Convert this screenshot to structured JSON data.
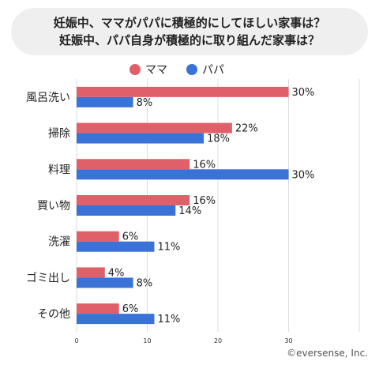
{
  "title_lines": [
    "妊娠中、ママがパパに積極的にしてほしい家事は？",
    "妊娠中、パパ自身が積極的に取り組んだ家事は？"
  ],
  "colors": {
    "mama": "#e0606a",
    "papa": "#3a72d8",
    "grid": "#dddddd",
    "title_bg": "#efefef"
  },
  "copyright": "©eversense, Inc.",
  "chart_data": {
    "type": "bar",
    "orientation": "horizontal",
    "categories": [
      "風呂洗い",
      "掃除",
      "料理",
      "買い物",
      "洗濯",
      "ゴミ出し",
      "その他"
    ],
    "series": [
      {
        "name": "ママ",
        "values": [
          30,
          22,
          16,
          16,
          6,
          4,
          6
        ],
        "labels": [
          "30%",
          "22%",
          "16%",
          "16%",
          "6%",
          "4%",
          "6%"
        ]
      },
      {
        "name": "パパ",
        "values": [
          8,
          18,
          30,
          14,
          11,
          8,
          11
        ],
        "labels": [
          "8%",
          "18%",
          "30%",
          "14%",
          "11%",
          "8%",
          "11%"
        ]
      }
    ],
    "xlim": [
      0,
      40
    ],
    "xticks": [
      0,
      10,
      20,
      30
    ],
    "grid": true,
    "legend": "top-center"
  }
}
